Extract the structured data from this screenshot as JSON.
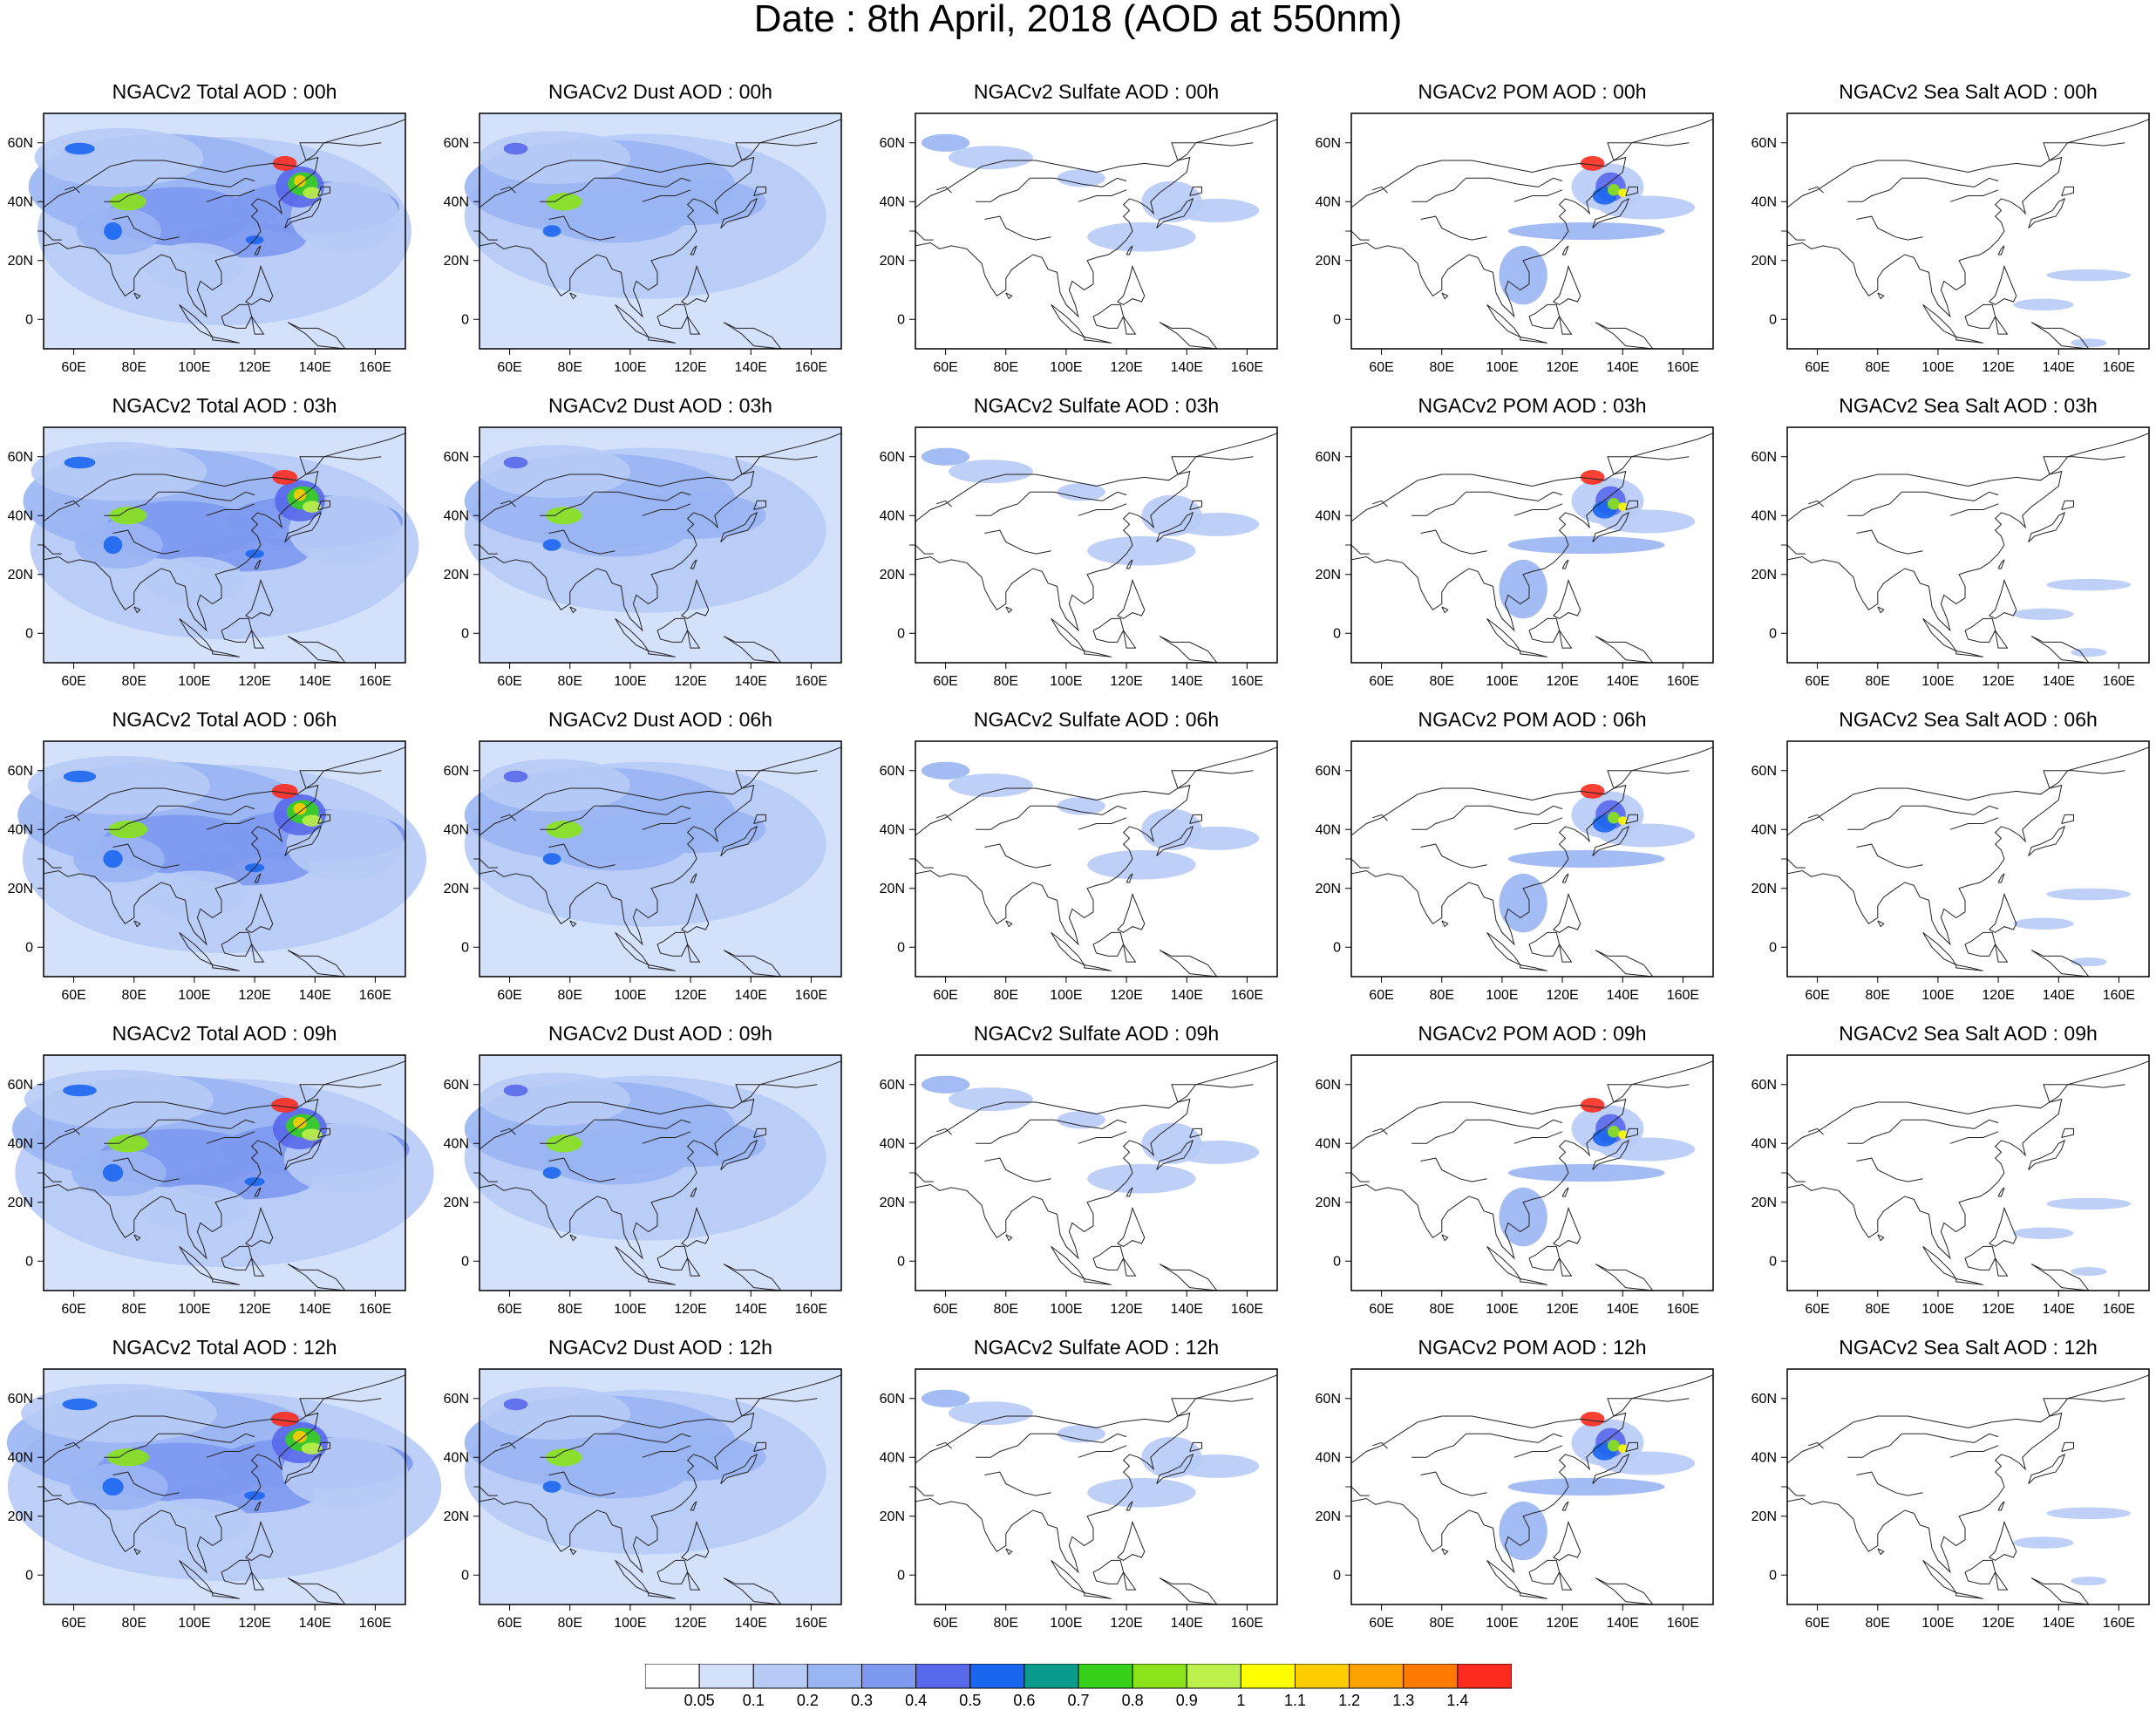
{
  "title": "Date : 8th April, 2018 (AOD at 550nm)",
  "rows": [
    {
      "hour": "00h",
      "titles": [
        "NGACv2 Total AOD : 00h",
        "NGACv2 Dust AOD : 00h",
        "NGACv2 Sulfate AOD : 00h",
        "NGACv2 POM AOD : 00h",
        "NGACv2 Sea Salt AOD : 00h"
      ]
    },
    {
      "hour": "03h",
      "titles": [
        "NGACv2 Total AOD : 03h",
        "NGACv2 Dust AOD : 03h",
        "NGACv2 Sulfate AOD : 03h",
        "NGACv2 POM AOD : 03h",
        "NGACv2 Sea Salt AOD : 03h"
      ]
    },
    {
      "hour": "06h",
      "titles": [
        "NGACv2 Total AOD : 06h",
        "NGACv2 Dust AOD : 06h",
        "NGACv2 Sulfate AOD : 06h",
        "NGACv2 POM AOD : 06h",
        "NGACv2 Sea Salt AOD : 06h"
      ]
    },
    {
      "hour": "09h",
      "titles": [
        "NGACv2 Total AOD : 09h",
        "NGACv2 Dust AOD : 09h",
        "NGACv2 Sulfate AOD : 09h",
        "NGACv2 POM AOD : 09h",
        "NGACv2 Sea Salt  AOD : 09h"
      ]
    },
    {
      "hour": "12h",
      "titles": [
        "NGACv2 Total AOD  : 12h",
        "NGACv2 Dust AOD : 12h",
        "NGACv2 Sulfate AOD : 12h",
        "NGACv2 POM  AOD : 12h",
        "NGACv2 Sea Salt  AOD : 12h"
      ]
    }
  ],
  "species": [
    "Total",
    "Dust",
    "Sulfate",
    "POM",
    "Sea Salt"
  ],
  "lon_ticks": [
    "60E",
    "80E",
    "100E",
    "120E",
    "140E",
    "160E"
  ],
  "lat_ticks": [
    "60N",
    "40N",
    "20N",
    "0"
  ],
  "lon_range": [
    50,
    170
  ],
  "lat_range": [
    -10,
    70
  ],
  "colorbar": {
    "labels": [
      "0.05",
      "0.1",
      "0.2",
      "0.3",
      "0.4",
      "0.5",
      "0.6",
      "0.7",
      "0.8",
      "0.9",
      "1",
      "1.1",
      "1.2",
      "1.3",
      "1.4"
    ],
    "colors": [
      "#ffffff",
      "#d4e1fa",
      "#b7cbf6",
      "#9ab5f3",
      "#7d99f0",
      "#5868ea",
      "#1b66ef",
      "#0a9b8d",
      "#37d01b",
      "#8ae31a",
      "#bdf04a",
      "#fefe00",
      "#fccb00",
      "#fda200",
      "#fc7a00",
      "#fc2b1e"
    ]
  }
}
